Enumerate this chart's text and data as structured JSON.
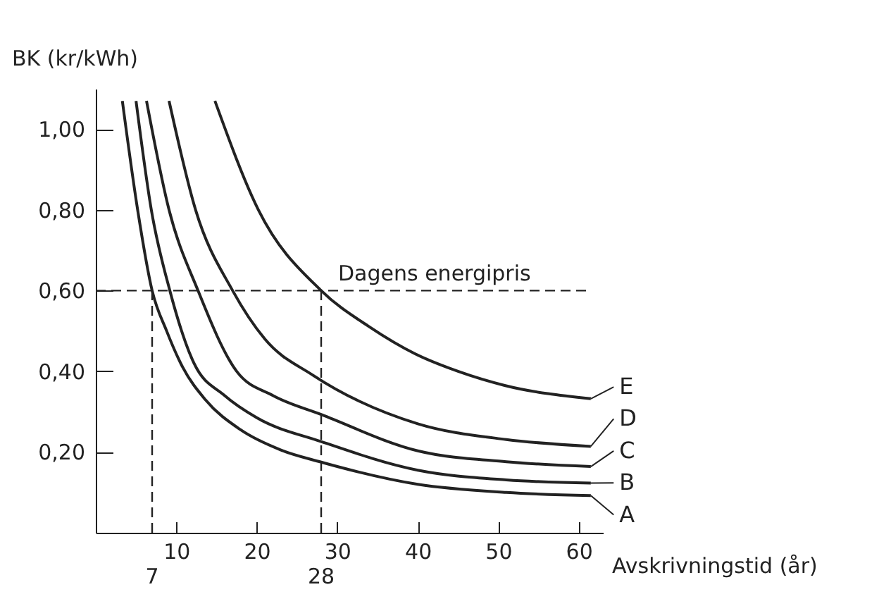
{
  "chart_data": {
    "type": "line",
    "xlabel": "Avskrivningstid (år)",
    "ylabel": "BK (kr/kWh)",
    "xlim": [
      0,
      63
    ],
    "xticks": [
      10,
      20,
      30,
      40,
      50,
      60
    ],
    "ylim": [
      0,
      1.1
    ],
    "yticks": [
      {
        "value": 0.2,
        "label": "0,20"
      },
      {
        "value": 0.4,
        "label": "0,40"
      },
      {
        "value": 0.6,
        "label": "0,60"
      },
      {
        "value": 0.8,
        "label": "0,80"
      },
      {
        "value": 1.0,
        "label": "1,00"
      }
    ],
    "grid": false,
    "legend": "right",
    "marker": "none",
    "line_style": "solid",
    "series": [
      {
        "name": "A",
        "color": "#222222",
        "x": [
          3.3,
          5.2,
          7,
          8.8,
          10.8,
          13.6,
          18,
          23,
          28,
          40,
          51,
          61.5
        ],
        "values": [
          1.07,
          0.8,
          0.6,
          0.5,
          0.41,
          0.33,
          0.255,
          0.205,
          0.175,
          0.12,
          0.1,
          0.092
        ]
      },
      {
        "name": "B",
        "color": "#222222",
        "x": [
          5,
          6.9,
          9.2,
          12.2,
          16,
          20,
          28,
          40,
          51,
          61.5
        ],
        "values": [
          1.07,
          0.8,
          0.6,
          0.42,
          0.34,
          0.285,
          0.226,
          0.155,
          0.131,
          0.123
        ]
      },
      {
        "name": "C",
        "color": "#222222",
        "x": [
          6.3,
          9.1,
          12.7,
          17.5,
          22,
          28,
          40,
          51,
          61.5
        ],
        "values": [
          1.07,
          0.8,
          0.6,
          0.4,
          0.34,
          0.293,
          0.203,
          0.176,
          0.164
        ]
      },
      {
        "name": "D",
        "color": "#222222",
        "x": [
          9.1,
          12.4,
          17,
          21,
          27,
          40,
          51,
          61.5
        ],
        "values": [
          1.07,
          0.8,
          0.6,
          0.48,
          0.39,
          0.27,
          0.231,
          0.214
        ]
      },
      {
        "name": "E",
        "color": "#222222",
        "x": [
          14.8,
          20.2,
          28,
          34,
          39.7,
          45,
          50.8,
          61.5
        ],
        "values": [
          1.07,
          0.8,
          0.6,
          0.51,
          0.443,
          0.4,
          0.365,
          0.332
        ]
      }
    ],
    "ref_lines": [
      {
        "axis": "y",
        "value": 0.6,
        "label": "Dagens energipris",
        "line_style": "dashed"
      },
      {
        "axis": "x",
        "value": 7,
        "label": "7",
        "line_style": "dashed"
      },
      {
        "axis": "x",
        "value": 28,
        "label": "28",
        "line_style": "dashed"
      }
    ]
  }
}
